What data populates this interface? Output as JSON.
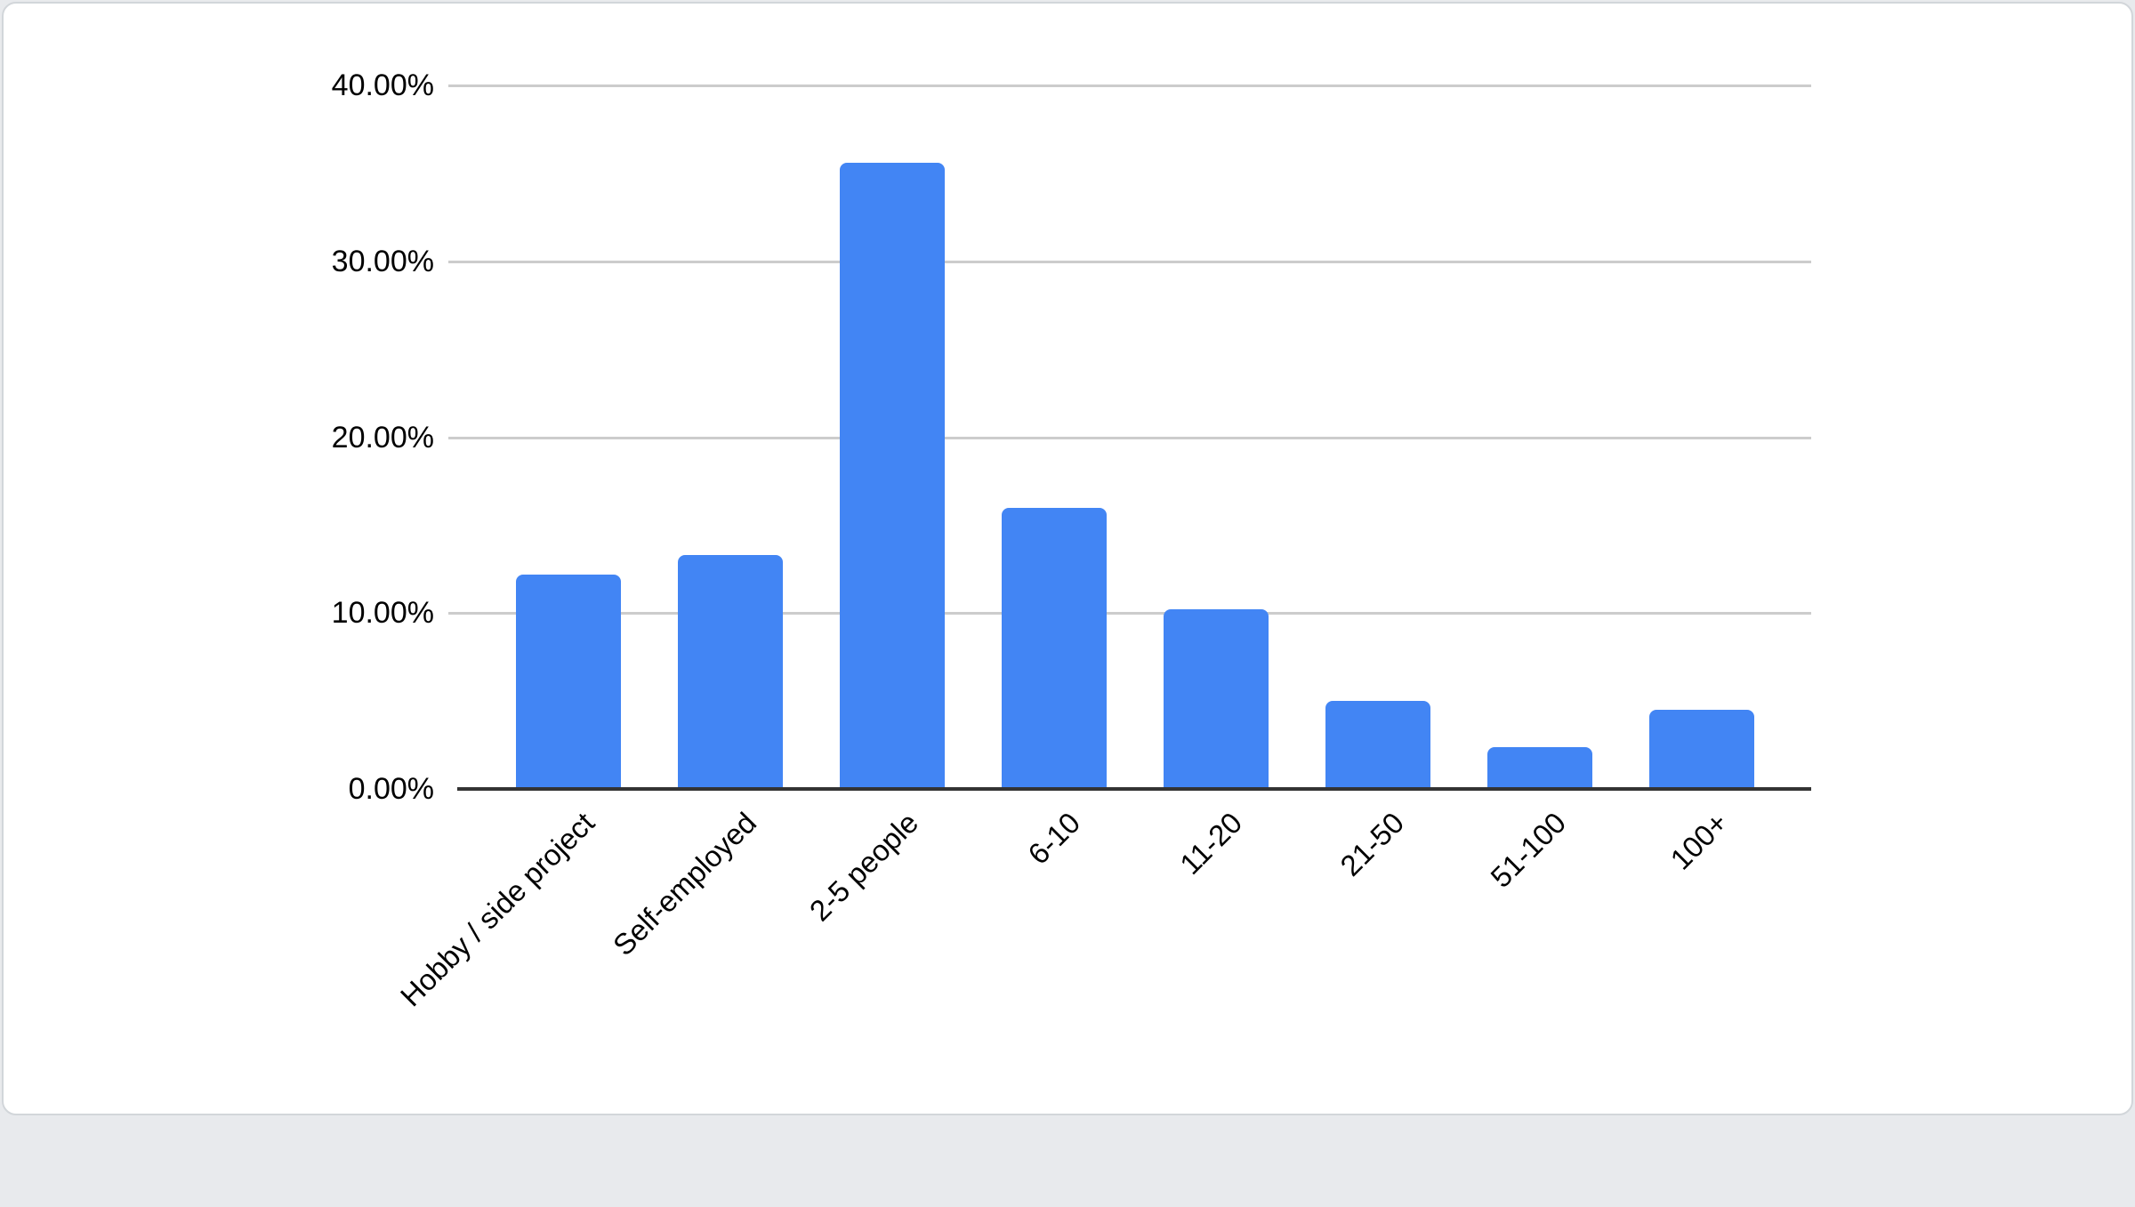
{
  "page": {
    "background_color": "#e8eaed"
  },
  "card": {
    "background_color": "#ffffff",
    "border_color": "#d2d6da"
  },
  "chart_data": {
    "type": "bar",
    "title": "",
    "xlabel": "",
    "ylabel": "",
    "categories": [
      "Hobby / side project",
      "Self-employed",
      "2-5 people",
      "6-10",
      "11-20",
      "21-50",
      "51-100",
      "100+"
    ],
    "values": [
      12.2,
      13.3,
      35.6,
      16.0,
      10.2,
      5.0,
      2.4,
      4.5
    ],
    "value_unit": "%",
    "ylim": [
      0,
      40
    ],
    "ytick_step": 10,
    "ytick_labels": [
      "0.00%",
      "10.00%",
      "20.00%",
      "30.00%",
      "40.00%"
    ],
    "grid": "horizontal",
    "legend": "none",
    "bar_color": "#4285f4",
    "gridline_color": "#cccccc",
    "axis_line_color": "#333333",
    "label_color": "#000000",
    "x_label_rotation_deg": -45
  }
}
